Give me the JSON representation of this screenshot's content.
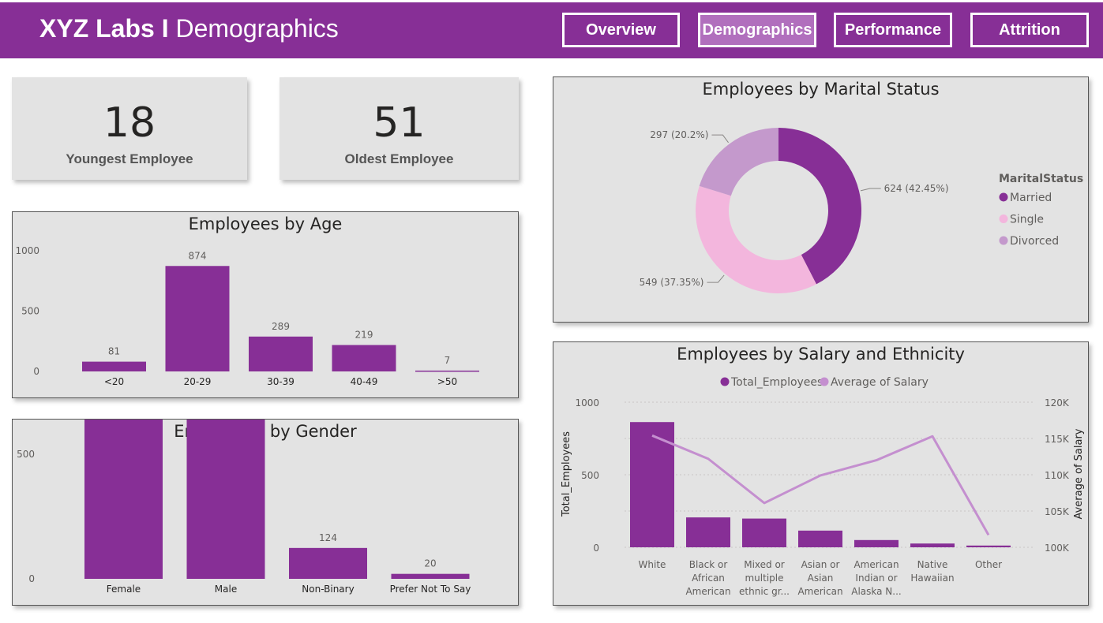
{
  "header": {
    "title_bold": "XYZ Labs I",
    "title_light": "Demographics",
    "nav": [
      "Overview",
      "Demographics",
      "Performance",
      "Attrition"
    ]
  },
  "kpis": {
    "youngest_value": "18",
    "youngest_label": "Youngest Employee",
    "oldest_value": "51",
    "oldest_label": "Oldest Employee"
  },
  "colors": {
    "primary": "#872f96",
    "married": "#872f96",
    "single": "#f3b6dd",
    "divorced": "#c499cc",
    "salary_line": "#c48fcf",
    "card_bg": "#e3e3e3"
  },
  "chart_data": [
    {
      "id": "age",
      "type": "bar",
      "title": "Employees by Age",
      "categories": [
        "<20",
        "20-29",
        "30-39",
        "40-49",
        ">50"
      ],
      "values": [
        81,
        874,
        289,
        219,
        7
      ],
      "yticks": [
        0,
        500,
        1000
      ],
      "ylim": [
        0,
        1000
      ]
    },
    {
      "id": "gender",
      "type": "bar",
      "title": "Employees by Gender",
      "categories": [
        "Female",
        "Male",
        "Non-Binary",
        "Prefer Not To Say"
      ],
      "values": [
        675,
        651,
        124,
        20
      ],
      "yticks": [
        0,
        500
      ],
      "ylim": [
        0,
        760
      ]
    },
    {
      "id": "marital",
      "type": "pie",
      "title": "Employees by Marital Status",
      "legend_title": "MaritalStatus",
      "legend_position": "right",
      "categories": [
        "Married",
        "Single",
        "Divorced"
      ],
      "values": [
        624,
        549,
        297
      ],
      "labels": [
        "624 (42.45%)",
        "549 (37.35%)",
        "297 (20.2%)"
      ]
    },
    {
      "id": "salary",
      "type": "bar",
      "title": "Employees by Salary and Ethnicity",
      "legend_position": "top",
      "categories": [
        "White",
        "Black or African American",
        "Mixed or multiple ethnic gr...",
        "Asian or Asian American",
        "American Indian or Alaska N...",
        "Native Hawaiian",
        "Other"
      ],
      "category_lines": [
        [
          "White"
        ],
        [
          "Black or",
          "African",
          "American"
        ],
        [
          "Mixed or",
          "multiple",
          "ethnic gr..."
        ],
        [
          "Asian or",
          "Asian",
          "American"
        ],
        [
          "American",
          "Indian or",
          "Alaska N..."
        ],
        [
          "Native",
          "Hawaiian"
        ],
        [
          "Other"
        ]
      ],
      "series": [
        {
          "name": "Total_Employees",
          "type": "bar",
          "axis": "left",
          "values": [
            863,
            206,
            198,
            115,
            50,
            26,
            12
          ]
        },
        {
          "name": "Average of Salary",
          "type": "line",
          "axis": "right",
          "values": [
            115400,
            112200,
            106100,
            109900,
            112000,
            115300,
            101700
          ]
        }
      ],
      "ylabel": "Total_Employees",
      "y2label": "Average of Salary",
      "yticks": [
        "0",
        "500",
        "1000"
      ],
      "ylim": [
        0,
        1000
      ],
      "y2ticks": [
        "100K",
        "105K",
        "110K",
        "115K",
        "120K"
      ],
      "y2lim": [
        100000,
        120000
      ]
    }
  ]
}
